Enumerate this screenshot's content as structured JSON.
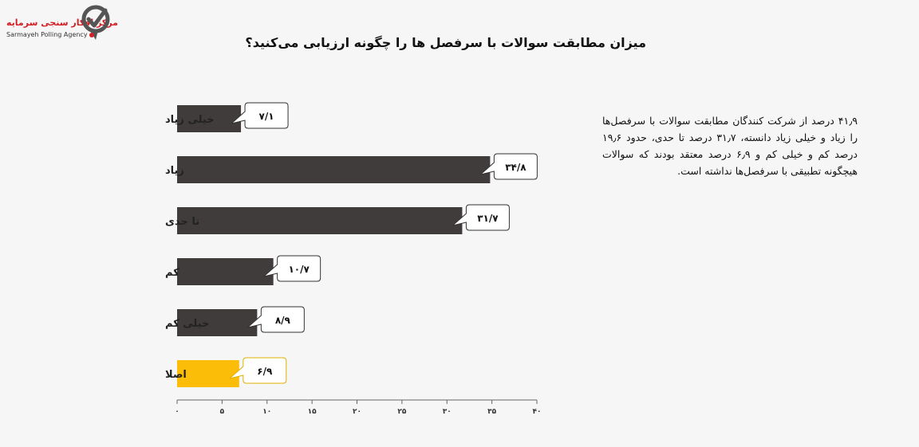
{
  "logo": {
    "name_fa": "مرکز افکار سنجی سرمایه",
    "name_en": "Sarmayeh Polling Agency"
  },
  "title": "میزان مطابقت سوالات با سرفصل ها را چگونه ارزیابی می‌کنید؟",
  "description": "۴۱٫۹ درصد از شرکت کنندگان مطابقت سوالات با سرفصل‌ها را زیاد و خیلی زیاد دانسته، ۳۱٫۷ درصد تا حدی، حدود ۱۹٫۶ درصد کم و خیلی کم و ۶٫۹ درصد معتقد بودند که سوالات هیچگونه تطبیقی با سرفصل‌ها نداشته است.",
  "chart_data": {
    "type": "bar",
    "orientation": "horizontal",
    "categories": [
      "خیلی زیاد",
      "زیاد",
      "تا حدی",
      "کم",
      "خیلی کم",
      "اصلا"
    ],
    "values": [
      7.1,
      34.8,
      31.7,
      10.7,
      8.9,
      6.9
    ],
    "value_labels": [
      "۷/۱",
      "۳۴/۸",
      "۳۱/۷",
      "۱۰/۷",
      "۸/۹",
      "۶/۹"
    ],
    "bar_colors": [
      "#403c3c",
      "#403c3c",
      "#403c3c",
      "#403c3c",
      "#403c3c",
      "#fbbd08"
    ],
    "xlim": [
      0,
      40
    ],
    "xticks": [
      0,
      5,
      10,
      15,
      20,
      25,
      30,
      35,
      40
    ],
    "xtick_labels": [
      "۰",
      "۵",
      "۱۰",
      "۱۵",
      "۲۰",
      "۲۵",
      "۳۰",
      "۳۵",
      "۴۰"
    ],
    "grid": false
  }
}
